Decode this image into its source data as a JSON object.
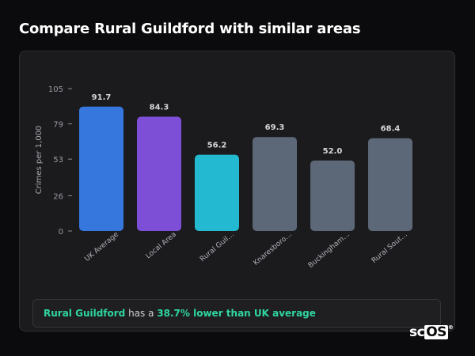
{
  "title": "Compare Rural Guildford with similar areas",
  "callout": {
    "area": "Rural Guildford",
    "middle": " has a ",
    "highlight": "38.7% lower than UK average"
  },
  "logo": {
    "prefix": "sc",
    "boxed": "OS",
    "mark": "®"
  },
  "chart_data": {
    "type": "bar",
    "ylabel": "Crimes per 1,000",
    "xlabel": "",
    "ylim": [
      0,
      105
    ],
    "yticks": [
      0,
      26,
      53,
      79,
      105
    ],
    "grid": false,
    "categories": [
      "UK Average",
      "Local Area",
      "Rural Guil…",
      "Knaresboro…",
      "Buckingham…",
      "Rural Sout…"
    ],
    "values": [
      91.7,
      84.3,
      56.2,
      69.3,
      52.0,
      68.4
    ],
    "value_labels": [
      "91.7",
      "84.3",
      "56.2",
      "69.3",
      "52.0",
      "68.4"
    ],
    "colors": [
      "#3577dd",
      "#7d4fd6",
      "#23b9d0",
      "#5c6778",
      "#5c6778",
      "#5c6778"
    ]
  }
}
